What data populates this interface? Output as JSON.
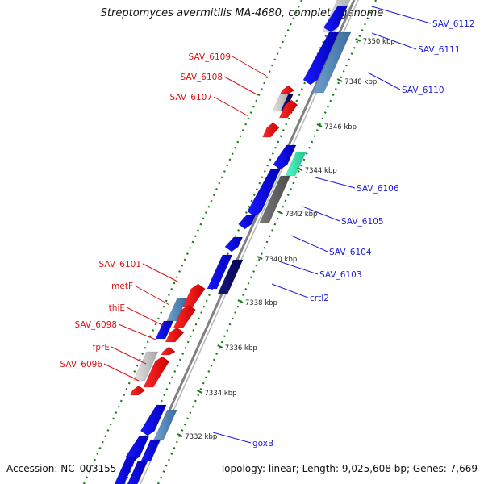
{
  "title": "Streptomyces avermitilis MA-4680, complete genome",
  "footer": {
    "accession": "Accession: NC_003155",
    "summary": "Topology: linear; Length: 9,025,608 bp; Genes: 7,669"
  },
  "colors": {
    "forward_label": "#1a1adc",
    "reverse_label": "#dd1111",
    "tick": "#1a7a1a",
    "axis": "#808080"
  },
  "ticks": [
    {
      "label": "7350 kbp"
    },
    {
      "label": "7348 kbp"
    },
    {
      "label": "7346 kbp"
    },
    {
      "label": "7344 kbp"
    },
    {
      "label": "7342 kbp"
    },
    {
      "label": "7340 kbp"
    },
    {
      "label": "7338 kbp"
    },
    {
      "label": "7336 kbp"
    },
    {
      "label": "7334 kbp"
    },
    {
      "label": "7332 kbp"
    }
  ],
  "forward_genes": [
    {
      "name": "SAV_6112"
    },
    {
      "name": "SAV_6111"
    },
    {
      "name": "SAV_6110"
    },
    {
      "name": "SAV_6106"
    },
    {
      "name": "SAV_6105"
    },
    {
      "name": "SAV_6104"
    },
    {
      "name": "SAV_6103"
    },
    {
      "name": "crtI2"
    },
    {
      "name": "goxB"
    }
  ],
  "reverse_genes": [
    {
      "name": "SAV_6109"
    },
    {
      "name": "SAV_6108"
    },
    {
      "name": "SAV_6107"
    },
    {
      "name": "SAV_6101"
    },
    {
      "name": "metF"
    },
    {
      "name": "thiE"
    },
    {
      "name": "SAV_6098"
    },
    {
      "name": "fprE"
    },
    {
      "name": "SAV_6096"
    }
  ]
}
